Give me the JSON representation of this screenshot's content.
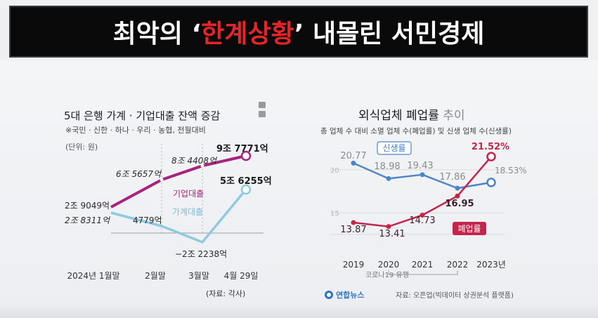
{
  "banner": {
    "prefix": "최악의 ‘",
    "highlight": "한계상황",
    "suffix": "’ 내몰린 서민경제",
    "highlight_color": "#e8242a"
  },
  "chart_data": [
    {
      "type": "line",
      "title": "5대 은행 가계 · 기업대출 잔액 증감",
      "subtitle": "※국민 · 신한 · 하나 · 우리 · 농협, 전월대비",
      "unit_label": "(단위: 원)",
      "categories": [
        "2024년 1월말",
        "2월말",
        "3월말",
        "4월 29일"
      ],
      "source": "(자료: 각사)",
      "grid": false,
      "series": [
        {
          "name": "기업대출",
          "color": "#a6247e",
          "values": [
            2.9049,
            6.5657,
            8.4408,
            9.7771
          ],
          "labels": [
            "2조 9049억",
            "6조 5657억",
            "8조 4408억",
            "9조 7771억"
          ]
        },
        {
          "name": "가계대출",
          "color": "#8fcbe0",
          "values": [
            2.8311,
            0.4779,
            -2.2238,
            5.6255
          ],
          "labels": [
            "2조 8311억",
            "4779억",
            "−2조 2238억",
            "5조 6255억"
          ]
        }
      ]
    },
    {
      "type": "line",
      "title_main": "외식업체 폐업률",
      "title_tail": " 추이",
      "subtitle": "총 업체 수 대비 소멸 업체 수(폐업률) 및 신생 업체 수(신생률)",
      "categories": [
        "2019",
        "2020",
        "2021",
        "2022",
        "2023년"
      ],
      "x_note": "코로나19 유행",
      "ylim": [
        12,
        23
      ],
      "yticks": [
        "20",
        "15"
      ],
      "grid": true,
      "source": "자료: 오픈업(빅데이터 상권분석 플랫폼)",
      "logo_text": "연합뉴스",
      "series": [
        {
          "name": "신생률",
          "color": "#4c86c6",
          "values": [
            20.77,
            18.98,
            19.43,
            17.86,
            18.53
          ],
          "labels": [
            "20.77",
            "18.98",
            "19.43",
            "17.86",
            "18.53%"
          ]
        },
        {
          "name": "폐업률",
          "color": "#c4254a",
          "values": [
            13.87,
            13.41,
            14.73,
            16.95,
            21.52
          ],
          "labels": [
            "13.87",
            "13.41",
            "14.73",
            "16.95",
            "21.52%"
          ]
        }
      ]
    }
  ]
}
